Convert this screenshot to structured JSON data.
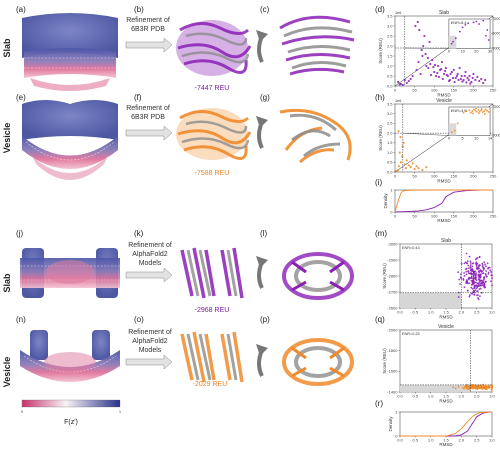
{
  "labels": {
    "row_slab_top": "Slab",
    "row_vesicle_top": "Vesicle",
    "row_slab_bottom": "Slab",
    "row_vesicle_bottom": "Vesicle",
    "refine_pdb_line1": "Refinement of",
    "refine_pdb_line2": "6B3R PDB",
    "refine_af_line1": "Refinement of",
    "refine_af_line2": "AlphaFold2",
    "refine_af_line3": "Models",
    "reu_b": "-7447 REU",
    "reu_f": "-7588 REU",
    "reu_k": "-2968 REU",
    "reu_o": "-2029 REU",
    "colorbar_min": "0",
    "colorbar_max": "1",
    "colorbar_label": "F(z')"
  },
  "panels": [
    "(a)",
    "(b)",
    "(c)",
    "(d)",
    "(e)",
    "(f)",
    "(g)",
    "(h)",
    "(i)",
    "(j)",
    "(k)",
    "(l)",
    "(m)",
    "(n)",
    "(o)",
    "(p)",
    "(q)",
    "(r)"
  ],
  "colors": {
    "purple": "#8a1fb5",
    "orange": "#f08a2a",
    "blue": "#4a56a8",
    "pink": "#d2507c",
    "grey": "#8c8c8c"
  },
  "chart_data": [
    {
      "id": "d",
      "type": "scatter",
      "title": "Slab",
      "xlabel": "RMSD",
      "ylabel": "Score (REU)",
      "multiplier": "1e6",
      "xlim": [
        0,
        250
      ],
      "ylim": [
        0,
        3.5
      ],
      "xticks": [
        "0",
        "50",
        "100",
        "150",
        "200",
        "250"
      ],
      "yticks": [
        "0.0",
        "0.5",
        "1.0",
        "1.5",
        "2.0",
        "2.5",
        "3.0",
        "3.5"
      ],
      "points": [
        [
          8,
          0.2
        ],
        [
          15,
          0.1
        ],
        [
          25,
          0.3
        ],
        [
          40,
          0.35
        ],
        [
          45,
          0.5
        ],
        [
          55,
          0.8
        ],
        [
          60,
          1.2
        ],
        [
          65,
          0.6
        ],
        [
          70,
          1.5
        ],
        [
          75,
          2.5
        ],
        [
          80,
          1.0
        ],
        [
          85,
          0.9
        ],
        [
          90,
          1.1
        ],
        [
          95,
          1.3
        ],
        [
          100,
          0.7
        ],
        [
          105,
          0.5
        ],
        [
          110,
          1.0
        ],
        [
          115,
          0.8
        ],
        [
          120,
          1.2
        ],
        [
          125,
          0.6
        ],
        [
          130,
          0.9
        ],
        [
          135,
          0.5
        ],
        [
          140,
          0.3
        ],
        [
          145,
          0.7
        ],
        [
          150,
          0.8
        ],
        [
          155,
          0.4
        ],
        [
          160,
          0.6
        ],
        [
          165,
          0.9
        ],
        [
          170,
          0.5
        ],
        [
          175,
          0.3
        ],
        [
          180,
          0.7
        ],
        [
          185,
          0.4
        ],
        [
          190,
          0.5
        ],
        [
          195,
          0.2
        ],
        [
          200,
          0.6
        ],
        [
          205,
          0.3
        ],
        [
          210,
          0.45
        ],
        [
          215,
          0.25
        ],
        [
          220,
          0.35
        ],
        [
          225,
          0.15
        ],
        [
          230,
          0.3
        ],
        [
          52,
          3.0
        ],
        [
          58,
          3.2
        ],
        [
          62,
          2.8
        ],
        [
          68,
          1.8
        ],
        [
          72,
          2.0
        ],
        [
          78,
          1.6
        ],
        [
          84,
          1.4
        ],
        [
          88,
          2.2
        ],
        [
          92,
          0.55
        ],
        [
          98,
          0.95
        ],
        [
          102,
          1.05
        ],
        [
          108,
          0.65
        ],
        [
          112,
          0.45
        ],
        [
          118,
          0.85
        ],
        [
          122,
          0.35
        ],
        [
          128,
          0.75
        ],
        [
          132,
          0.55
        ],
        [
          138,
          0.25
        ],
        [
          142,
          0.6
        ],
        [
          148,
          0.4
        ],
        [
          152,
          0.2
        ],
        [
          158,
          0.5
        ],
        [
          162,
          0.3
        ],
        [
          168,
          0.35
        ],
        [
          172,
          0.22
        ],
        [
          178,
          0.5
        ],
        [
          182,
          0.18
        ],
        [
          188,
          0.3
        ],
        [
          192,
          0.12
        ],
        [
          198,
          0.4
        ],
        [
          30,
          0.15
        ],
        [
          35,
          0.25
        ],
        [
          20,
          0.05
        ],
        [
          12,
          0.08
        ]
      ],
      "vline_x": 25,
      "hline_y": 1.9,
      "inset": {
        "annotation": "ENR=8.4",
        "xlim": [
          0,
          30
        ],
        "ylim": [
          -8000,
          -4500
        ],
        "xticks": [
          "0",
          "10",
          "20",
          "30"
        ],
        "yticks": [
          "-5000",
          "-6000",
          "-7500"
        ],
        "points": [
          [
            2,
            -7450
          ],
          [
            3,
            -7200
          ],
          [
            5,
            -6800
          ],
          [
            8,
            -6000
          ],
          [
            10,
            -5500
          ],
          [
            12,
            -5200
          ],
          [
            14,
            -5000
          ],
          [
            18,
            -4900
          ],
          [
            20,
            -4800
          ],
          [
            22,
            -5100
          ],
          [
            25,
            -4700
          ],
          [
            27,
            -6500
          ],
          [
            28,
            -5800
          ],
          [
            29,
            -7000
          ]
        ]
      }
    },
    {
      "id": "h",
      "type": "scatter",
      "title": "Vesicle",
      "xlabel": "RMSD",
      "ylabel": "Score (REU)",
      "multiplier": "1e6",
      "xlim": [
        0,
        250
      ],
      "ylim": [
        0,
        3.5
      ],
      "xticks": [
        "0",
        "50",
        "100",
        "150",
        "200",
        "250"
      ],
      "yticks": [
        "0.0",
        "0.5",
        "1.0",
        "1.5",
        "2.0",
        "2.5",
        "3.0",
        "3.5"
      ],
      "points": [
        [
          5,
          0.05
        ],
        [
          8,
          0.1
        ],
        [
          10,
          0.3
        ],
        [
          12,
          1.0
        ],
        [
          15,
          0.5
        ],
        [
          18,
          0.8
        ],
        [
          20,
          1.3
        ],
        [
          25,
          0.4
        ],
        [
          28,
          0.2
        ],
        [
          30,
          0.6
        ],
        [
          35,
          0.35
        ],
        [
          40,
          0.25
        ],
        [
          45,
          0.45
        ],
        [
          50,
          0.15
        ],
        [
          55,
          0.3
        ],
        [
          60,
          0.2
        ],
        [
          70,
          0.1
        ],
        [
          80,
          0.25
        ],
        [
          9,
          2.1
        ],
        [
          14,
          1.8
        ],
        [
          22,
          1.5
        ]
      ],
      "vline_x": 20,
      "hline_y": 2.0,
      "inset": {
        "annotation": "ENR=3.5",
        "xlim": [
          0,
          14
        ],
        "ylim": [
          -8000,
          -4500
        ],
        "xticks": [
          "0",
          "5",
          "10",
          "14"
        ],
        "yticks": [
          "-5000",
          "-7500"
        ],
        "points": [
          [
            1,
            -7600
          ],
          [
            2,
            -7400
          ],
          [
            3,
            -6500
          ],
          [
            5,
            -5200
          ],
          [
            6,
            -5000
          ],
          [
            7,
            -4900
          ],
          [
            8,
            -5000
          ],
          [
            8.5,
            -4800
          ],
          [
            9,
            -4950
          ],
          [
            9.5,
            -5100
          ],
          [
            10,
            -4850
          ],
          [
            10.5,
            -5050
          ],
          [
            11,
            -4900
          ],
          [
            11.5,
            -5150
          ],
          [
            12,
            -5000
          ],
          [
            12.5,
            -4800
          ],
          [
            13,
            -4950
          ],
          [
            7.5,
            -5200
          ],
          [
            8.2,
            -5300
          ],
          [
            9.2,
            -4700
          ],
          [
            10.2,
            -5250
          ],
          [
            11.2,
            -4750
          ],
          [
            12.2,
            -5350
          ],
          [
            13.5,
            -5100
          ]
        ]
      }
    },
    {
      "id": "i",
      "type": "line",
      "xlabel": "RMSD",
      "ylabel": "Density",
      "xlim": [
        0,
        250
      ],
      "ylim": [
        0,
        1
      ],
      "xticks": [
        "0",
        "50",
        "100",
        "150",
        "200",
        "250"
      ],
      "yticks": [
        "0",
        "1"
      ],
      "series": [
        {
          "color": "#8a1fb5",
          "x": [
            0,
            30,
            60,
            80,
            100,
            120,
            130,
            150,
            180,
            220,
            250
          ],
          "y": [
            0,
            0.02,
            0.05,
            0.1,
            0.2,
            0.4,
            0.7,
            0.9,
            0.97,
            1,
            1
          ]
        },
        {
          "color": "#f08a2a",
          "x": [
            0,
            5,
            10,
            15,
            20,
            30,
            50,
            100,
            150,
            250
          ],
          "y": [
            0,
            0.3,
            0.6,
            0.85,
            0.95,
            0.98,
            0.99,
            1,
            1,
            1
          ]
        }
      ]
    },
    {
      "id": "m",
      "type": "scatter",
      "title": "Slab",
      "xlabel": "RMSD",
      "ylabel": "Score (REU)",
      "xlim": [
        0,
        3
      ],
      "ylim": [
        -3000,
        -2600
      ],
      "xticks": [
        "0.0",
        "0.5",
        "1.0",
        "1.5",
        "2.0",
        "2.5",
        "3.0"
      ],
      "yticks": [
        "-2600",
        "-2700",
        "-2800",
        "-2900",
        "-3000"
      ],
      "annotation": "ENR=0.43",
      "cloud": {
        "cx": 2.45,
        "cy": -2810,
        "sx": 0.22,
        "sy": 60,
        "n": 260
      },
      "vline_x": 2.0,
      "hline_y": -2905
    },
    {
      "id": "q",
      "type": "scatter",
      "title": "Vesicle",
      "xlabel": "RMSD",
      "ylabel": "Score (REU)",
      "xlim": [
        0,
        3
      ],
      "ylim": [
        -2100,
        -1400
      ],
      "xticks": [
        "0.0",
        "0.5",
        "1.0",
        "1.5",
        "2.0",
        "2.5",
        "3.0"
      ],
      "yticks": [
        "-1400",
        "-1600",
        "-1800",
        "-2000"
      ],
      "annotation": "ENR=0.25",
      "cloud": {
        "cx": 2.55,
        "cy": -2045,
        "sx": 0.25,
        "sy": 12,
        "n": 180
      },
      "vline_x": 2.3,
      "hline_y": -2020
    },
    {
      "id": "r",
      "type": "line",
      "xlabel": "RMSD",
      "ylabel": "Density",
      "xlim": [
        0,
        3
      ],
      "ylim": [
        0,
        1
      ],
      "xticks": [
        "0.0",
        "0.5",
        "1.0",
        "1.5",
        "2.0",
        "2.5",
        "3.0"
      ],
      "yticks": [
        "0",
        "1"
      ],
      "series": [
        {
          "color": "#8a1fb5",
          "x": [
            0,
            1.8,
            2.0,
            2.2,
            2.35,
            2.5,
            2.7,
            2.9,
            3.0
          ],
          "y": [
            0,
            0,
            0.05,
            0.2,
            0.5,
            0.8,
            0.95,
            1,
            1
          ]
        },
        {
          "color": "#f08a2a",
          "x": [
            0,
            1.5,
            1.8,
            2.0,
            2.2,
            2.4,
            2.6,
            3.0
          ],
          "y": [
            0,
            0,
            0.1,
            0.3,
            0.6,
            0.85,
            0.97,
            1
          ]
        }
      ]
    }
  ]
}
